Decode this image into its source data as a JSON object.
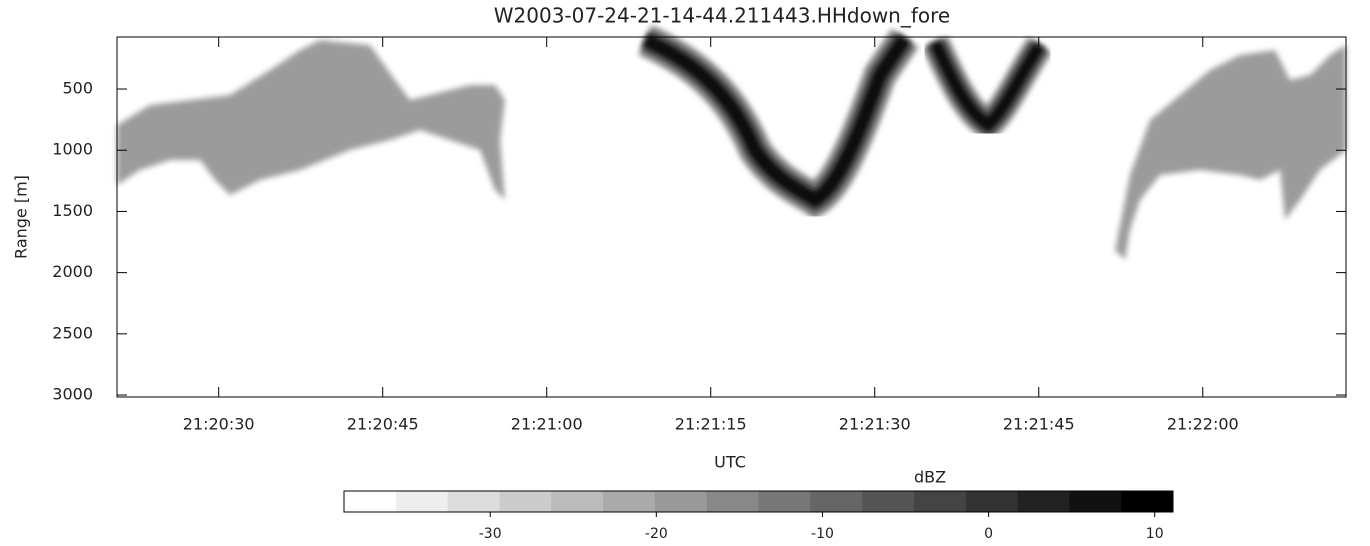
{
  "chart_data": {
    "type": "heatmap",
    "title": "W2003-07-24-21-14-44.211443.HHdown_fore",
    "xlabel": "UTC",
    "ylabel": "Range [m]",
    "xlim": [
      76820.7,
      76933.1
    ],
    "xticks": [
      {
        "value": 76830,
        "label": "21:20:30"
      },
      {
        "value": 76845,
        "label": "21:20:45"
      },
      {
        "value": 76860,
        "label": "21:21:00"
      },
      {
        "value": 76875,
        "label": "21:21:15"
      },
      {
        "value": 76890,
        "label": "21:21:30"
      },
      {
        "value": 76905,
        "label": "21:21:45"
      },
      {
        "value": 76920,
        "label": "21:22:00"
      }
    ],
    "ylim": [
      3016,
      75
    ],
    "yticks": [
      500,
      1000,
      1500,
      2000,
      2500,
      3000
    ],
    "colorbar": {
      "label": "dBZ",
      "lim": [
        -38.8,
        11.1
      ],
      "ticks": [
        -30,
        -20,
        -10,
        0,
        10
      ],
      "colors": [
        "#ffffff",
        "#eeeeee",
        "#dddddd",
        "#cccccc",
        "#bbbbbb",
        "#aaaaaa",
        "#999999",
        "#888888",
        "#777777",
        "#666666",
        "#555555",
        "#444444",
        "#333333",
        "#222222",
        "#111111",
        "#000000"
      ]
    }
  }
}
